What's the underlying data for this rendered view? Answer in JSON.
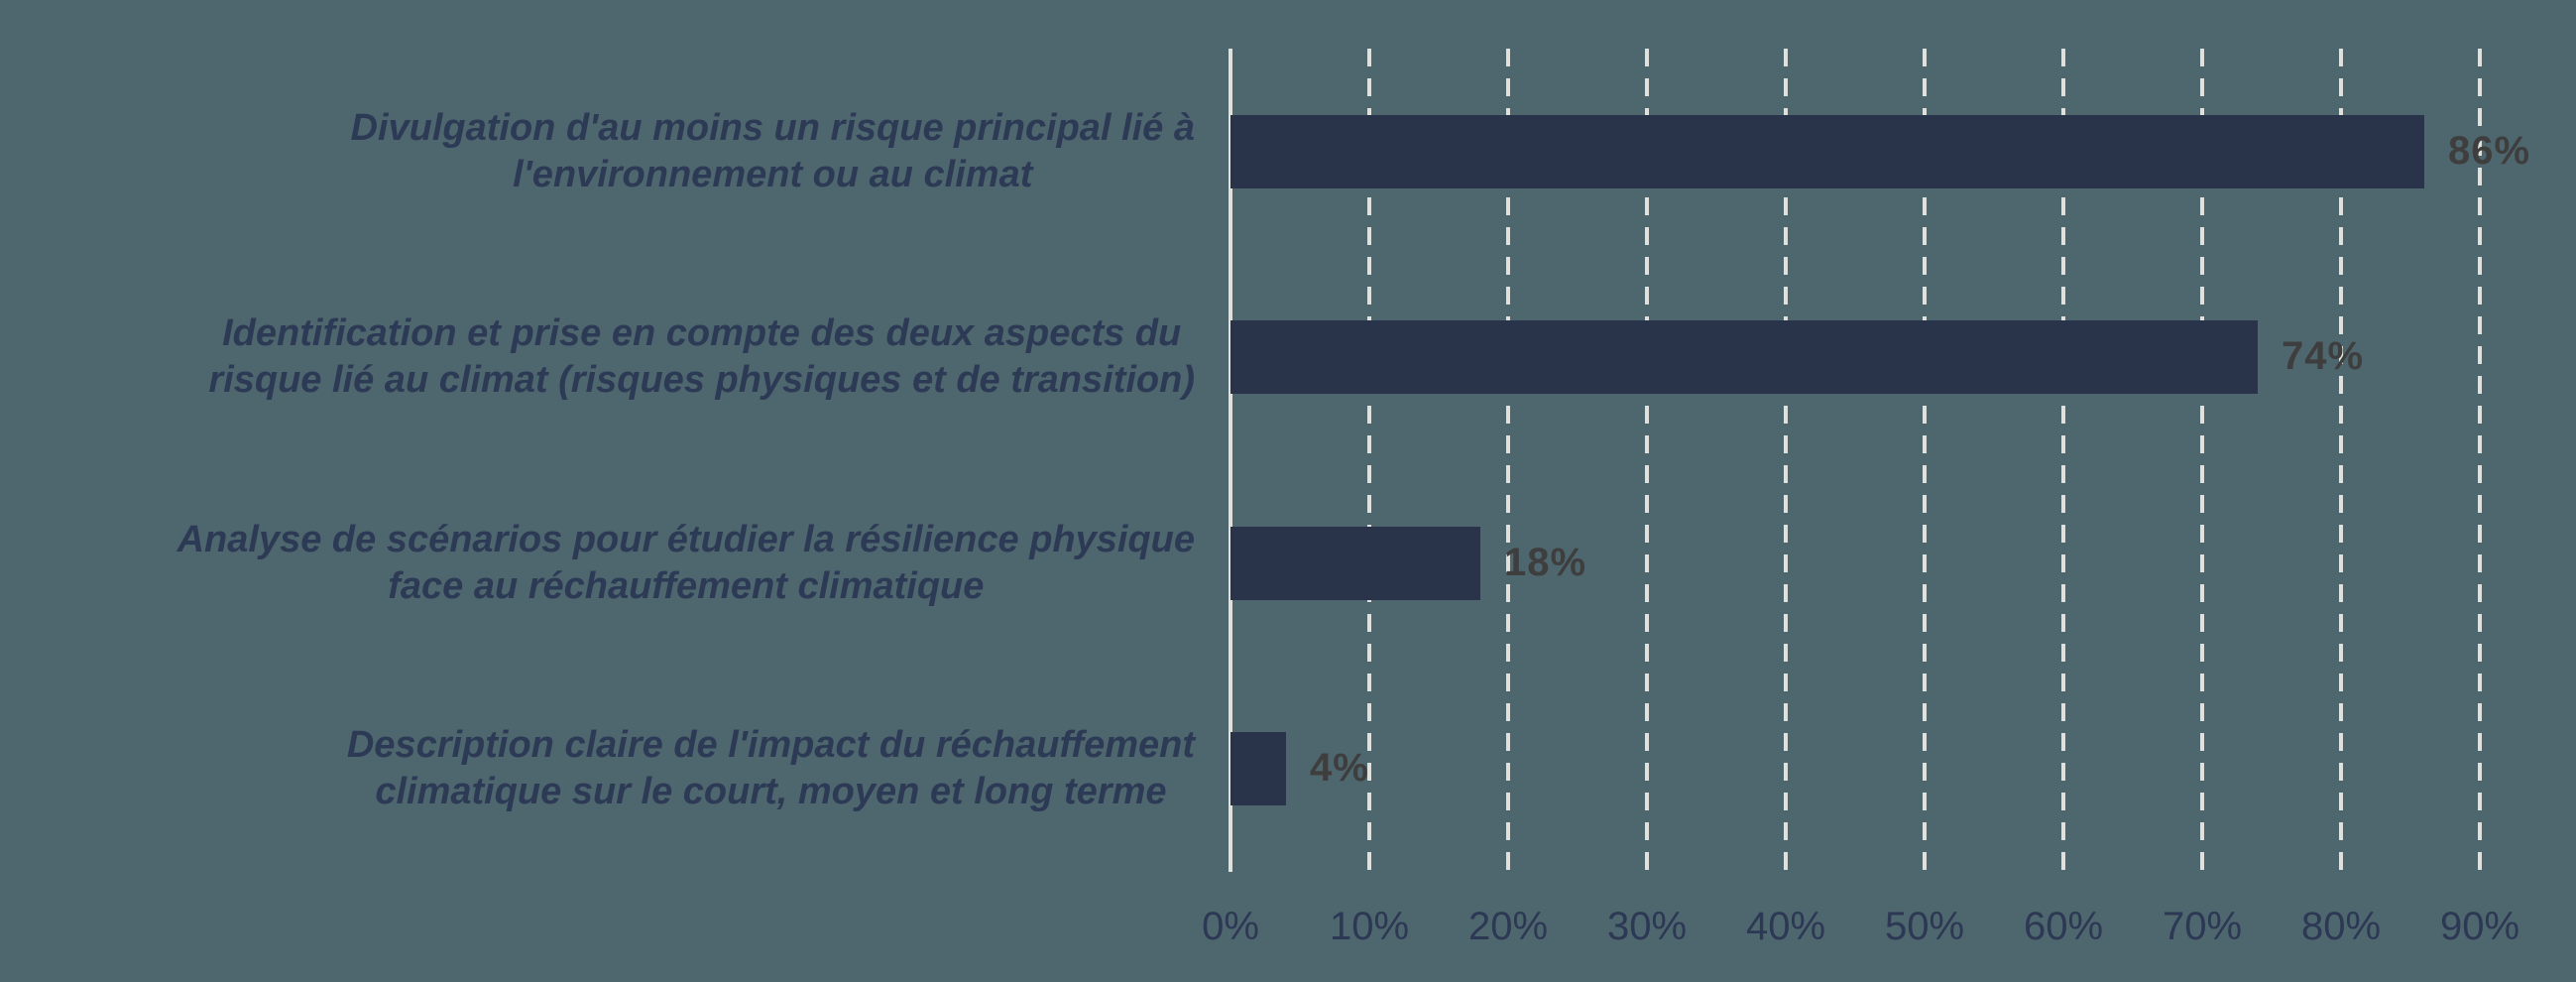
{
  "chart_data": {
    "type": "bar",
    "orientation": "horizontal",
    "title": "",
    "xlabel": "",
    "ylabel": "",
    "xlim": [
      0,
      94
    ],
    "grid": "vertical-dashed",
    "legend": "none",
    "categories": [
      "Divulgation d'au moins un risque principal lié à\nl'environnement ou au climat",
      "Identification et prise en compte des deux aspects du\nrisque lié au climat (risques physiques et de transition)",
      "Analyse de scénarios pour étudier la résilience physique\nface au réchauffement climatique",
      "Description claire de l'impact du réchauffement\nclimatique sur le court, moyen et long terme"
    ],
    "values": [
      86,
      74,
      18,
      4
    ],
    "value_labels": [
      "86%",
      "74%",
      "18%",
      "4%"
    ],
    "x_ticks": [
      "0%",
      "10%",
      "20%",
      "30%",
      "40%",
      "50%",
      "60%",
      "70%",
      "80%",
      "90%"
    ],
    "colors": {
      "background": "#4e666d",
      "bar": "#293349",
      "category_text": "#2d3a55",
      "tick_text": "#2c3854",
      "value_text": "#3f3e3e",
      "gridline": "#e0e0dd"
    }
  }
}
